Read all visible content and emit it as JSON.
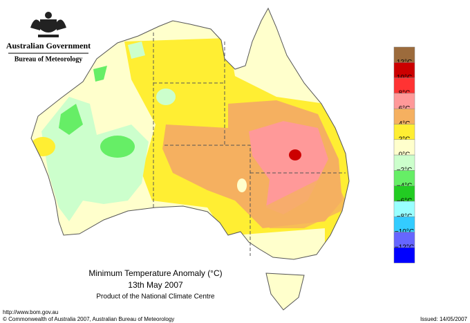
{
  "header": {
    "agency": "Australian Government",
    "bureau": "Bureau of Meteorology"
  },
  "map": {
    "title": "Minimum Temperature Anomaly (°C)",
    "date": "13th May 2007",
    "product": "Product of the National Climate Centre"
  },
  "legend": {
    "items": [
      {
        "color": "#9c6b3c",
        "label": "12°C"
      },
      {
        "color": "#cc0000",
        "label": "10°C"
      },
      {
        "color": "#ff3333",
        "label": "8°C"
      },
      {
        "color": "#ff9999",
        "label": "6°C"
      },
      {
        "color": "#f5b060",
        "label": "4°C"
      },
      {
        "color": "#ffee33",
        "label": "2°C"
      },
      {
        "color": "#ffffcc",
        "label": "0°C"
      },
      {
        "color": "#ccffcc",
        "label": "−2°C"
      },
      {
        "color": "#66ee66",
        "label": "−4°C"
      },
      {
        "color": "#22cc22",
        "label": "−6°C"
      },
      {
        "color": "#99ffff",
        "label": "−8°C"
      },
      {
        "color": "#33ccff",
        "label": "−10°C"
      },
      {
        "color": "#6666ff",
        "label": "−12°C"
      },
      {
        "color": "#0000ff"
      }
    ]
  },
  "footer": {
    "url": "http://www.bom.gov.au",
    "copyright": "© Commonwealth of Australia 2007, Australian Bureau of Meteorology",
    "issued": "Issued: 14/05/2007"
  }
}
